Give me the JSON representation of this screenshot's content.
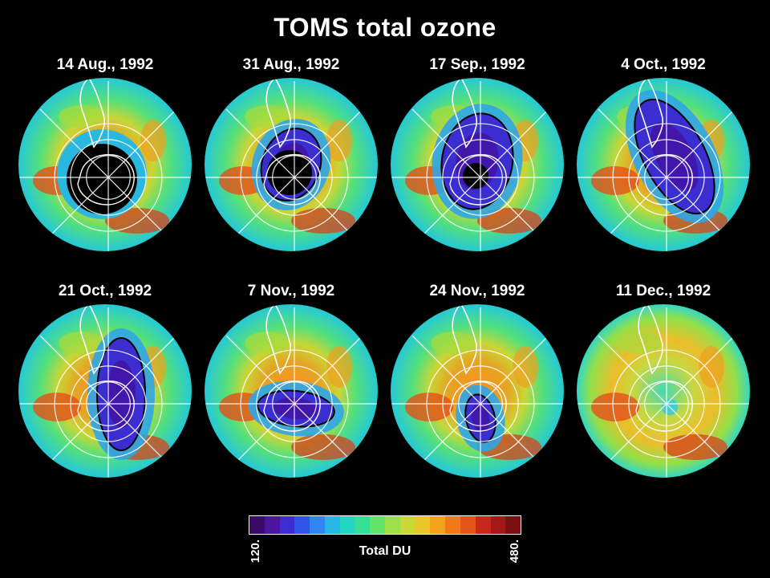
{
  "title": "TOMS total ozone",
  "panels": [
    {
      "date": "14 Aug., 1992",
      "hole": "none"
    },
    {
      "date": "31 Aug., 1992",
      "hole": "small"
    },
    {
      "date": "17 Sep., 1992",
      "hole": "medium"
    },
    {
      "date": "4 Oct., 1992",
      "hole": "large"
    },
    {
      "date": "21 Oct., 1992",
      "hole": "large-shifted"
    },
    {
      "date": "7 Nov., 1992",
      "hole": "elongated"
    },
    {
      "date": "24 Nov., 1992",
      "hole": "small-remnant"
    },
    {
      "date": "11 Dec., 1992",
      "hole": "none"
    }
  ],
  "colorbar": {
    "min": "120.",
    "max": "480.",
    "label": "Total DU",
    "colors": [
      "#3a0a6a",
      "#4a14a0",
      "#3c2ed0",
      "#2f55e8",
      "#2f86f0",
      "#26b6e6",
      "#22d6c4",
      "#35e092",
      "#64e46a",
      "#9cdf46",
      "#c8d834",
      "#ecc628",
      "#f4a21c",
      "#f27a16",
      "#e45418",
      "#c8281c",
      "#a51818",
      "#7a0e10"
    ]
  }
}
